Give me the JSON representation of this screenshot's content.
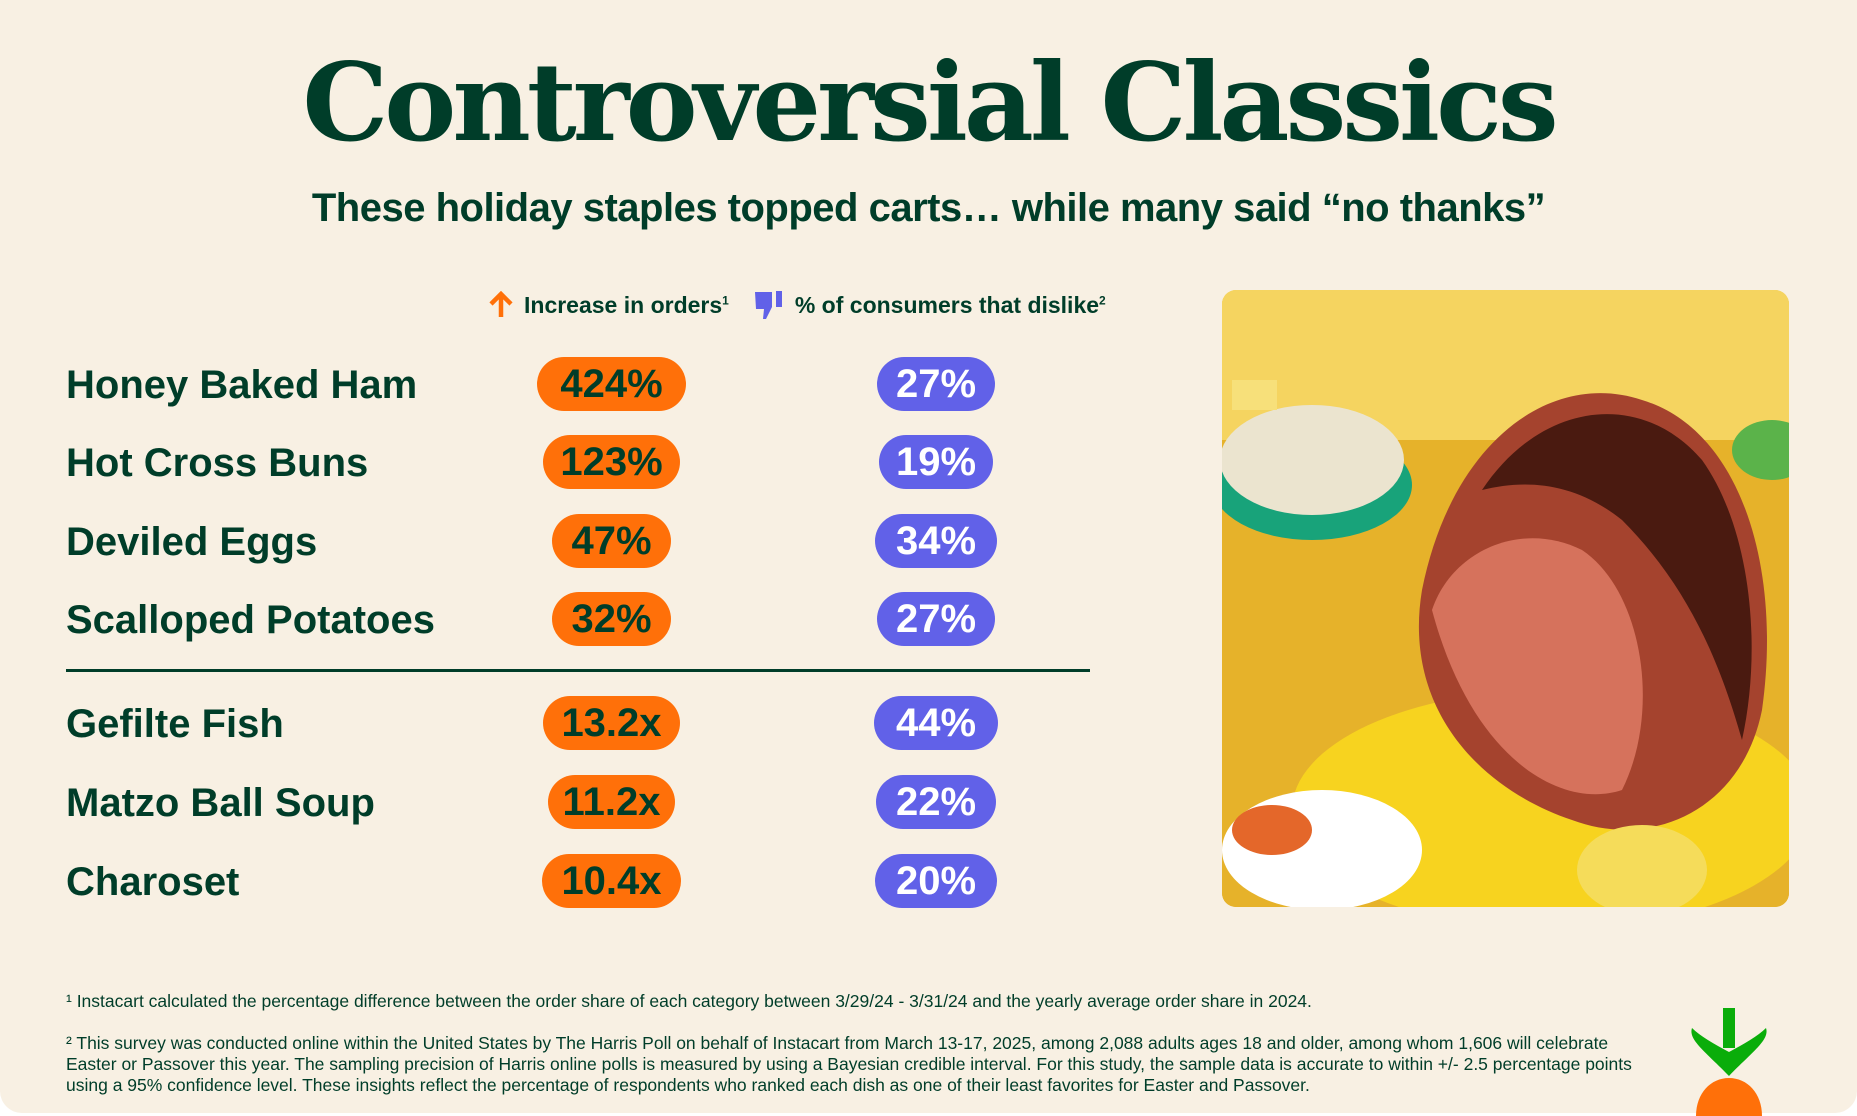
{
  "title": "Controversial Classics",
  "subtitle": "These holiday staples topped carts… while many said “no thanks”",
  "legend": {
    "orders_label": "Increase in orders",
    "orders_sup": "1",
    "orders_icon": "arrow-up-icon",
    "dislike_label": "% of consumers that dislike",
    "dislike_sup": "2",
    "dislike_icon": "thumbs-down-icon"
  },
  "colors": {
    "text": "#003d29",
    "orders": "#ff7009",
    "dislike": "#6161e8",
    "background": "#f8f0e3"
  },
  "easter_items": [
    {
      "name": "Honey Baked Ham",
      "orders": "424%",
      "dislike": "27%"
    },
    {
      "name": "Hot Cross Buns",
      "orders": "123%",
      "dislike": "19%"
    },
    {
      "name": "Deviled Eggs",
      "orders": "47%",
      "dislike": "34%"
    },
    {
      "name": "Scalloped Potatoes",
      "orders": "32%",
      "dislike": "27%"
    }
  ],
  "passover_items": [
    {
      "name": "Gefilte Fish",
      "orders": "13.2x",
      "dislike": "44%"
    },
    {
      "name": "Matzo Ball Soup",
      "orders": "11.2x",
      "dislike": "22%"
    },
    {
      "name": "Charoset",
      "orders": "10.4x",
      "dislike": "20%"
    }
  ],
  "footnotes": [
    "¹ Instacart calculated the percentage difference between the order share of each category between 3/29/24 - 3/31/24 and the yearly average order share in 2024.",
    "² This survey was conducted online within the United States by The Harris Poll on behalf of Instacart from March 13-17, 2025, among 2,088 adults ages 18 and older, among whom 1,606 will celebrate Easter or Passover this year. The sampling precision of Harris online polls is measured by using a Bayesian credible interval. For this study, the sample data is accurate to within +/- 2.5 percentage points using a 95% confidence level. These insights reflect the percentage of respondents who ranked each dish as one of their least favorites for Easter and Passover."
  ]
}
